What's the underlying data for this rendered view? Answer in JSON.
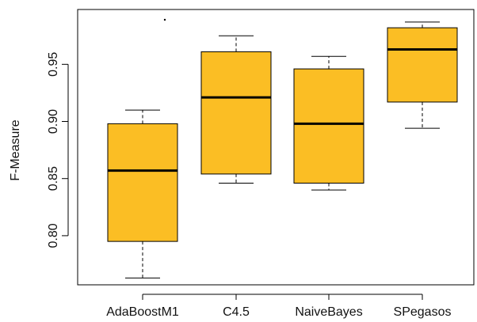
{
  "chart_data": {
    "type": "boxplot",
    "title": "",
    "xlabel": "",
    "ylabel": "F-Measure",
    "ylim": [
      0.757,
      0.998
    ],
    "yticks": [
      "0.80",
      "0.85",
      "0.90",
      "0.95"
    ],
    "ytick_values": [
      0.8,
      0.85,
      0.9,
      0.95
    ],
    "box_color": "#FBBE24",
    "median_color": "#000000",
    "categories": [
      "AdaBoostM1",
      "C4.5",
      "NaiveBayes",
      "SPegasos"
    ],
    "boxes": [
      {
        "whisker_low": 0.763,
        "q1": 0.795,
        "median": 0.857,
        "q3": 0.898,
        "whisker_high": 0.91,
        "outliers": [
          0.989
        ]
      },
      {
        "whisker_low": 0.846,
        "q1": 0.854,
        "median": 0.921,
        "q3": 0.961,
        "whisker_high": 0.975,
        "outliers": []
      },
      {
        "whisker_low": 0.84,
        "q1": 0.846,
        "median": 0.898,
        "q3": 0.946,
        "whisker_high": 0.957,
        "outliers": []
      },
      {
        "whisker_low": 0.894,
        "q1": 0.917,
        "median": 0.963,
        "q3": 0.982,
        "whisker_high": 0.987,
        "outliers": []
      }
    ]
  }
}
